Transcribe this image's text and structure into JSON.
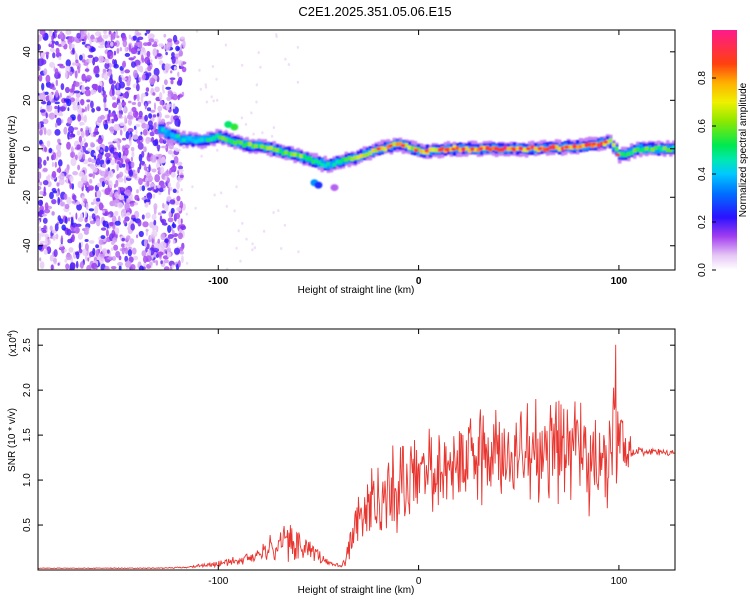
{
  "title": "C2E1.2025.351.05.06.E15",
  "chart_data": [
    {
      "type": "heatmap",
      "name": "spectrogram",
      "xlabel": "Height of straight line (km)",
      "ylabel": "Frequency (Hz)",
      "xlim": [
        -190,
        128
      ],
      "ylim": [
        -50,
        49
      ],
      "x_ticks": [
        -100,
        0,
        100
      ],
      "y_ticks": [
        -40,
        -20,
        0,
        20,
        40
      ],
      "noise_region_x": [
        -190,
        -117
      ],
      "ridge": {
        "x": [
          -130,
          -120,
          -110,
          -100,
          -90,
          -80,
          -70,
          -60,
          -50,
          -45,
          -40,
          -30,
          -20,
          -10,
          0,
          20,
          40,
          60,
          80,
          95,
          100,
          110,
          128
        ],
        "freq": [
          8,
          4,
          3,
          5,
          2,
          1,
          -1,
          -3,
          -6,
          -7,
          -5,
          -3,
          0,
          2,
          -1,
          0,
          0,
          0,
          1,
          3,
          -3,
          0,
          0
        ],
        "peak_amplitude": [
          0.4,
          0.45,
          0.45,
          0.55,
          0.6,
          0.6,
          0.6,
          0.6,
          0.55,
          0.45,
          0.5,
          0.7,
          0.8,
          0.75,
          0.7,
          0.9,
          0.9,
          0.85,
          0.85,
          0.8,
          0.5,
          0.6,
          0.55
        ]
      },
      "colorbar": {
        "label": "Normalized spectral amplitude",
        "range": [
          0,
          1
        ],
        "ticks": [
          0,
          0.2,
          0.4,
          0.6,
          0.8
        ],
        "tick_labels": [
          "0.0",
          "0.2",
          "0.4",
          "0.6",
          "0.8"
        ]
      }
    },
    {
      "type": "line",
      "name": "snr",
      "xlabel": "Height of straight line (km)",
      "ylabel": "SNR (10 * v/v)",
      "scale_label": "(x10",
      "scale_exponent": "4",
      "xlim": [
        -190,
        128
      ],
      "ylim": [
        0,
        2.68
      ],
      "x_ticks": [
        -100,
        0,
        100
      ],
      "y_ticks": [
        0.5,
        1.0,
        1.5,
        2.0,
        2.5
      ],
      "y_tick_labels": [
        "0.5",
        "1.0",
        "1.5",
        "2.0",
        "2.5"
      ],
      "color": "#e8352f",
      "envelope": {
        "x": [
          -190,
          -130,
          -115,
          -105,
          -90,
          -80,
          -72,
          -64,
          -57,
          -50,
          -44,
          -38,
          -34,
          -30,
          -26,
          -20,
          -14,
          -10,
          -5,
          0,
          10,
          20,
          30,
          40,
          50,
          60,
          70,
          80,
          88,
          92,
          96,
          98,
          100,
          104,
          108,
          115,
          128
        ],
        "mean": [
          0.02,
          0.02,
          0.03,
          0.06,
          0.1,
          0.17,
          0.26,
          0.3,
          0.26,
          0.16,
          0.07,
          0.05,
          0.25,
          0.55,
          0.7,
          0.8,
          0.85,
          0.88,
          0.95,
          1.05,
          1.15,
          1.22,
          1.28,
          1.3,
          1.3,
          1.32,
          1.35,
          1.35,
          1.2,
          1.25,
          1.3,
          1.6,
          1.4,
          1.3,
          1.32,
          1.32,
          1.3
        ],
        "amp": [
          0.003,
          0.005,
          0.01,
          0.03,
          0.05,
          0.09,
          0.17,
          0.24,
          0.16,
          0.08,
          0.02,
          0.03,
          0.25,
          0.35,
          0.45,
          0.5,
          0.55,
          0.55,
          0.5,
          0.45,
          0.45,
          0.5,
          0.55,
          0.6,
          0.55,
          0.55,
          0.55,
          0.6,
          0.65,
          0.7,
          0.85,
          1.1,
          0.45,
          0.25,
          0.05,
          0.04,
          0.04
        ]
      }
    }
  ]
}
